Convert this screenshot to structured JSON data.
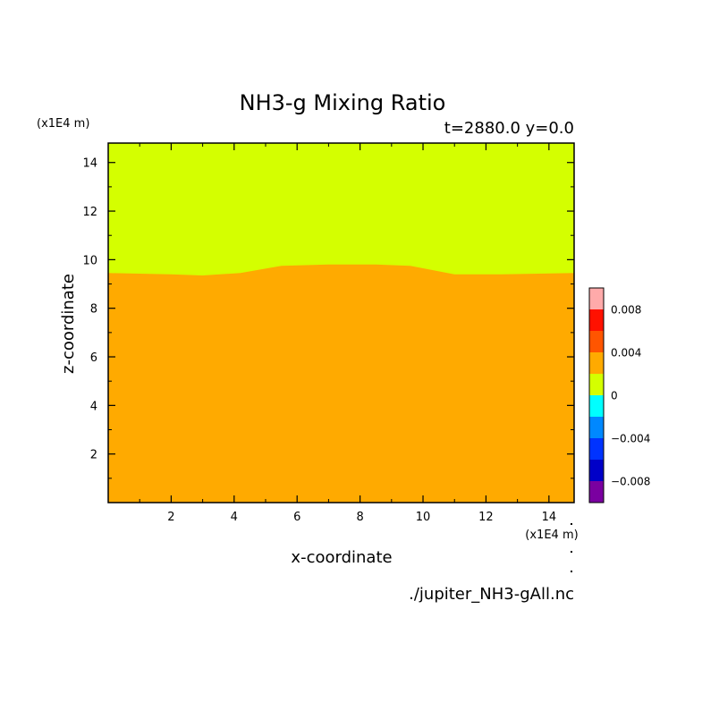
{
  "chart_data": {
    "type": "heatmap",
    "title": "NH3-g Mixing Ratio",
    "subtitle": "t=2880.0 y=0.0",
    "xlabel": "x-coordinate",
    "ylabel": "z-coordinate",
    "x_unit": "(x1E4 m)",
    "y_unit": "(x1E4 m)",
    "xlim": [
      0,
      14.8
    ],
    "ylim": [
      0,
      14.8
    ],
    "xticks": [
      2,
      4,
      6,
      8,
      10,
      12,
      14
    ],
    "yticks": [
      2,
      4,
      6,
      8,
      10,
      12,
      14
    ],
    "grid": false,
    "regions": [
      {
        "name": "lower",
        "color": "#ffaa00"
      },
      {
        "name": "upper",
        "color": "#d4ff00"
      }
    ],
    "boundary_x": [
      0,
      2,
      3,
      4.2,
      5.5,
      7,
      8.5,
      9.6,
      11,
      12.5,
      14.8
    ],
    "boundary_z": [
      9.45,
      9.4,
      9.35,
      9.45,
      9.75,
      9.8,
      9.8,
      9.75,
      9.4,
      9.4,
      9.45
    ],
    "colorbar": {
      "levels": [
        -0.01,
        -0.008,
        -0.006,
        -0.004,
        -0.002,
        0,
        0.002,
        0.004,
        0.006,
        0.008,
        0.01
      ],
      "colors": [
        "#7a00a0",
        "#0000c8",
        "#0033ff",
        "#0088ff",
        "#00ffff",
        "#d4ff00",
        "#ffaa00",
        "#ff5500",
        "#ff1100",
        "#ffaaaa"
      ],
      "tick_values": [
        -0.008,
        -0.004,
        0,
        0.004,
        0.008
      ],
      "tick_labels": [
        "−0.008",
        "−0.004",
        "0",
        "0.004",
        "0.008"
      ]
    },
    "source": "./jupiter_NH3-gAll.nc"
  }
}
